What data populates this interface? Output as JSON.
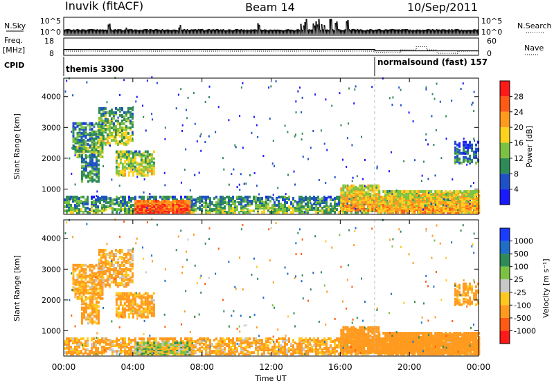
{
  "header": {
    "station": "Inuvik (fitACF)",
    "beam": "Beam 14",
    "date": "10/Sep/2011"
  },
  "nsky_panel": {
    "left_label": "N.Sky",
    "left_ticks": [
      "10^5",
      "10^0"
    ],
    "right_label": "N.Search",
    "right_ticks": [
      "10^5",
      "10^0"
    ]
  },
  "freq_panel": {
    "left_label_1": "Freq.",
    "left_label_2": "[MHz]",
    "left_ticks": [
      "18",
      "8"
    ],
    "right_label": "Nave",
    "right_ticks": [
      "60",
      "0"
    ]
  },
  "cpid": {
    "label": "CPID",
    "segments": [
      {
        "text": "themis 3300",
        "start_hour": 0
      },
      {
        "text": "normalsound (fast) 157",
        "start_hour": 18
      }
    ]
  },
  "power_panel": {
    "ylabel": "Slant Range [km]",
    "yticks": [
      "1000",
      "2000",
      "3000",
      "4000"
    ],
    "colorbar_label": "Power [dB]",
    "colorbar_ticks": [
      "4",
      "8",
      "12",
      "16",
      "20",
      "24",
      "28"
    ],
    "colors": [
      "#1a1aff",
      "#1e50c8",
      "#2e8b57",
      "#7cc242",
      "#ffd21e",
      "#ff9a1e",
      "#ff5a14",
      "#ff1a1a"
    ]
  },
  "velocity_panel": {
    "ylabel": "Slant Range [km]",
    "yticks": [
      "1000",
      "2000",
      "3000",
      "4000"
    ],
    "colorbar_label": "Velocity [m s⁻¹]",
    "colorbar_ticks": [
      "1000",
      "500",
      "100",
      "25",
      "-25",
      "-100",
      "-500",
      "-1000"
    ],
    "colors": [
      "#1a3cff",
      "#1e6ec8",
      "#2e8b57",
      "#7cc242",
      "#c8c8c8",
      "#ffc81e",
      "#ff9a1e",
      "#ff5a14",
      "#ff1a1a"
    ]
  },
  "xaxis": {
    "label": "Time UT",
    "ticks": [
      "00:00",
      "04:00",
      "08:00",
      "12:00",
      "16:00",
      "20:00",
      "00:00"
    ]
  },
  "chart_data": {
    "type": "heatmap",
    "title": "Inuvik (fitACF) Beam 14 10/Sep/2011",
    "xlabel": "Time UT",
    "ylabel": "Slant Range [km]",
    "xlim_hours": [
      0,
      24
    ],
    "ylim_km": [
      180,
      4600
    ],
    "power_range_db": [
      0,
      30
    ],
    "velocity_range_ms": [
      -1000,
      1000
    ],
    "nsky_log_range": [
      0,
      5
    ],
    "freq_range_mhz": [
      8,
      18
    ],
    "nave_range": [
      0,
      60
    ],
    "frequency_mhz_segments": [
      {
        "start_hour": 0,
        "end_hour": 18,
        "value": 11.2
      },
      {
        "start_hour": 18,
        "end_hour": 24,
        "value": 10.4
      }
    ],
    "nave_segments": [
      {
        "start_hour": 0,
        "end_hour": 18,
        "value": 13
      },
      {
        "start_hour": 18,
        "end_hour": 19.5,
        "value": 8
      },
      {
        "start_hour": 19.5,
        "end_hour": 20.4,
        "value": 18
      },
      {
        "start_hour": 20.4,
        "end_hour": 21,
        "value": 30
      },
      {
        "start_hour": 21,
        "end_hour": 21.6,
        "value": 18
      },
      {
        "start_hour": 21.6,
        "end_hour": 22.8,
        "value": 5
      },
      {
        "start_hour": 22.8,
        "end_hour": 24,
        "value": 13
      }
    ],
    "echo_regions": [
      {
        "name": "near-range band",
        "t0": 0,
        "t1": 24,
        "r0": 200,
        "r1": 700,
        "power_db": 14,
        "velocity": -150,
        "density": 0.55
      },
      {
        "name": "strong near-range 04-07",
        "t0": 4.1,
        "t1": 7.3,
        "r0": 200,
        "r1": 580,
        "power_db": 29,
        "velocity": 20,
        "density": 0.95
      },
      {
        "name": "far-range patch 00-02",
        "t0": 0.5,
        "t1": 2.2,
        "r0": 2000,
        "r1": 3100,
        "power_db": 14,
        "velocity": -160,
        "density": 0.55
      },
      {
        "name": "far-range patch 01-02",
        "t0": 1.0,
        "t1": 2.0,
        "r0": 1200,
        "r1": 2100,
        "power_db": 13,
        "velocity": -140,
        "density": 0.5
      },
      {
        "name": "far-range patch 02-04",
        "t0": 2.0,
        "t1": 4.0,
        "r0": 2400,
        "r1": 3600,
        "power_db": 16,
        "velocity": -150,
        "density": 0.5
      },
      {
        "name": "far-range patch 03-05",
        "t0": 3.0,
        "t1": 5.2,
        "r0": 1400,
        "r1": 2200,
        "power_db": 18,
        "velocity": -170,
        "density": 0.55
      },
      {
        "name": "evening near-range 16-18",
        "t0": 16.0,
        "t1": 18.2,
        "r0": 250,
        "r1": 1100,
        "power_db": 22,
        "velocity": -300,
        "density": 0.7
      },
      {
        "name": "evening near-range 18-24",
        "t0": 18.2,
        "t1": 24,
        "r0": 200,
        "r1": 900,
        "power_db": 22,
        "velocity": -260,
        "density": 0.8
      },
      {
        "name": "late far-range 22-24",
        "t0": 22.6,
        "t1": 24,
        "r0": 1800,
        "r1": 2500,
        "power_db": 10,
        "velocity": -200,
        "density": 0.4
      }
    ]
  }
}
